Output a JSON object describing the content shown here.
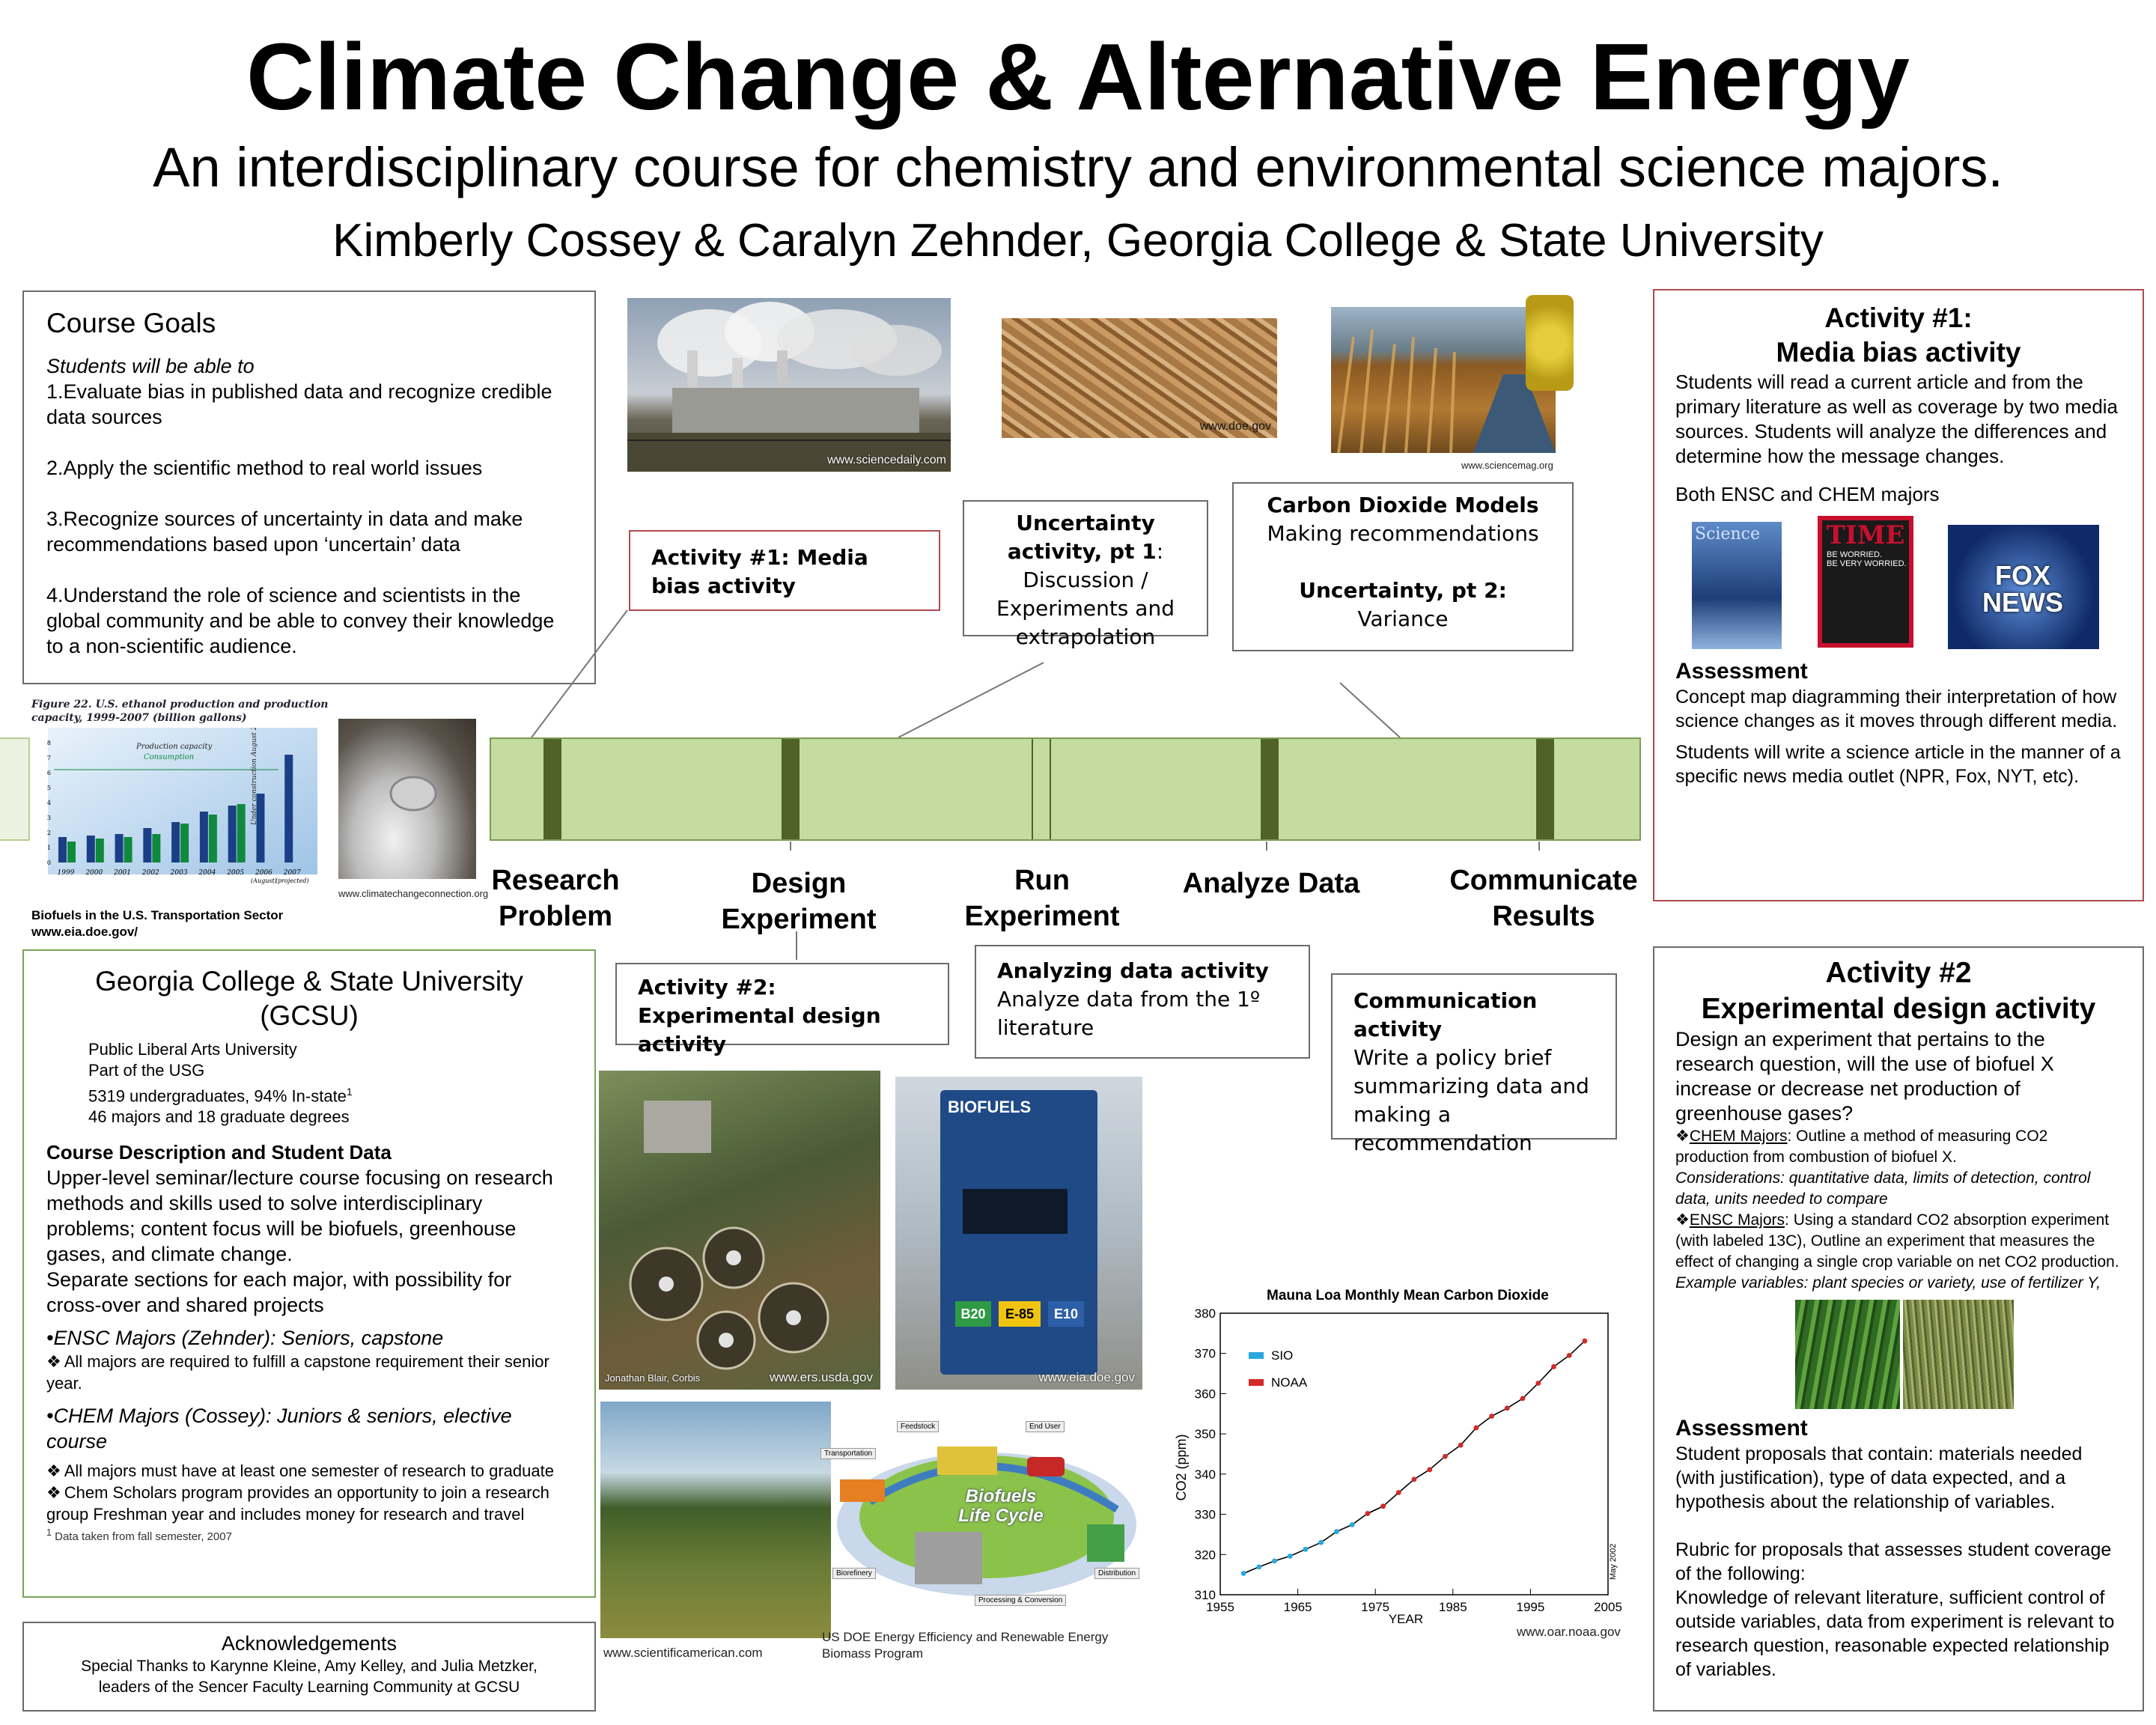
{
  "header": {
    "title": "Climate Change & Alternative Energy",
    "subtitle": "An interdisciplinary course for chemistry and environmental science majors.",
    "authors": "Kimberly Cossey & Caralyn Zehnder, Georgia College & State University"
  },
  "goals": {
    "heading": "Course Goals",
    "intro": "Students will be able to",
    "items": [
      "1.Evaluate bias in published data and recognize credible data sources",
      "2.Apply the scientific method to real world issues",
      "3.Recognize sources of uncertainty in data and make recommendations based upon ‘uncertain’ data",
      "4.Understand the role of science and scientists in the global community and be able to convey their knowledge to a non-scientific audience."
    ]
  },
  "photos": {
    "smokestack_credit": "www.sciencedaily.com",
    "woodchips_credit": "www.doe.gov",
    "corn_credit": "www.sciencemag.org",
    "exhaust_credit": "www.climatechangeconnection.org",
    "aerial_credit1": "Jonathan Blair, Corbis",
    "aerial_credit2": "www.ers.usda.gov",
    "pump_credit": "www.eia.doe.gov",
    "field_credit": "www.scientificamerican.com",
    "lifecycle_credit": "US DOE Energy Efficiency and Renewable Energy Biomass Program",
    "pump_sign": "BIOFUELS",
    "pump_b20": "B20",
    "pump_e85": "E-85",
    "pump_e10": "E10",
    "lifecycle_title": "Biofuels Life Cycle",
    "lifecycle_labels": [
      "Feedstock",
      "End User",
      "Transportation",
      "Biorefinery",
      "Processing & Conversion",
      "Distribution"
    ]
  },
  "ethanol_chart": {
    "caption_title": "Figure 22. U.S. ethanol production and production capacity, 1999-2007 (billion gallons)",
    "legend": [
      "Production capacity",
      "Consumption"
    ],
    "under_construction": "Under construction August 2006",
    "source1": "Biofuels in the U.S. Transportation Sector",
    "source2": "www.eia.doe.gov/"
  },
  "ethanol_chart_data": {
    "type": "bar",
    "categories": [
      "1999",
      "2000",
      "2001",
      "2002",
      "2003",
      "2004",
      "2005",
      "2006",
      "2007"
    ],
    "x_sublabels": [
      "",
      "",
      "",
      "",
      "",
      "",
      "",
      "(August)",
      "(projected)"
    ],
    "series": [
      {
        "name": "Production capacity",
        "values": [
          1.7,
          1.8,
          1.9,
          2.3,
          2.7,
          3.4,
          3.8,
          4.6,
          7.2
        ]
      },
      {
        "name": "Consumption",
        "values": [
          1.4,
          1.6,
          1.7,
          1.9,
          2.6,
          3.2,
          3.9
        ]
      }
    ],
    "ylim": [
      0,
      8
    ],
    "yticks": [
      "0",
      "1",
      "2",
      "3",
      "4",
      "5",
      "6",
      "7",
      "8"
    ]
  },
  "flowchart": {
    "boxes": {
      "media": "Activity #1: Media bias activity",
      "uncertainty_title": "Uncertainty activity, pt 1",
      "uncertainty_rest": ": Discussion / Experiments and extrapolation",
      "co2_title": "Carbon Dioxide Models",
      "co2_sub": "Making recommendations",
      "unc2_title": "Uncertainty, pt 2:",
      "unc2_sub": "Variance",
      "design": "Activity #2: Experimental design activity",
      "analyze_title": "Analyzing data activity",
      "analyze_body": "Analyze data from the 1º literature",
      "comm_title": "Communication activity",
      "comm_body": "Write a policy brief summarizing data and making a recommendation"
    },
    "stages": [
      "Research Problem",
      "Design Experiment",
      "Run Experiment",
      "Analyze Data",
      "Communicate Results"
    ]
  },
  "gcsu": {
    "title": "Georgia College & State University (GCSU)",
    "facts": [
      "Public Liberal Arts University",
      "Part of the USG",
      "5319 undergraduates, 94% In-state",
      "46 majors and 18 graduate degrees"
    ],
    "facts_sup": "1",
    "desc_heading": "Course Description and Student Data",
    "desc": "Upper-level seminar/lecture course focusing on research methods and skills used to solve interdisciplinary problems; content focus will be biofuels, greenhouse gases, and climate change.",
    "desc2": "Separate sections for each major, with possibility for cross-over and shared projects",
    "ensc_heading": "•ENSC Majors (Zehnder): Seniors, capstone",
    "ensc_item": "All majors are required to fulfill a capstone requirement their senior year.",
    "chem_heading": "•CHEM Majors (Cossey): Juniors & seniors, elective course",
    "chem_items": [
      "All majors must have at least one semester of research to graduate",
      "Chem Scholars program provides an opportunity to join a research group Freshman year and includes money for research and  travel"
    ],
    "footnote": "Data taken from fall semester, 2007",
    "footnote_mark": "1"
  },
  "ack": {
    "heading": "Acknowledgements",
    "body": "Special Thanks to Karynne Kleine, Amy Kelley, and Julia Metzker, leaders of the Sencer Faculty Learning Community at GCSU"
  },
  "activity1": {
    "heading1": "Activity #1:",
    "heading2": "Media bias activity",
    "body": "Students will read a current article and from the primary literature as well as coverage by two media sources.  Students will analyze the differences and determine how the message changes.",
    "majors": "Both ENSC and CHEM majors",
    "covers": [
      "Science",
      "TIME",
      "FOX NEWS"
    ],
    "time_line1": "BE WORRIED.",
    "time_line2": "BE VERY WORRIED.",
    "assessment_heading": "Assessment",
    "assessment1": "Concept map diagramming their interpretation of how science changes as it moves through different media.",
    "assessment2": "Students will write a science article in the manner of a specific news media outlet (NPR, Fox, NYT, etc)."
  },
  "activity2": {
    "heading1": "Activity #2",
    "heading2": "Experimental design activity",
    "question": "Design an experiment that pertains to the research question, will the use of biofuel X increase or decrease net production of greenhouse gases?",
    "chem_label": "CHEM Majors",
    "chem_text": ": Outline a method of measuring CO2 production from combustion of biofuel X.",
    "chem_consider": "Considerations: quantitative data, limits of detection, control data, units needed to compare",
    "ensc_label": "ENSC Majors",
    "ensc_text": ": Using a standard CO2 absorption experiment (with labeled 13C), Outline an experiment that measures the effect of changing a single crop variable on net CO2 production.",
    "ensc_example": "Example variables: plant species or variety, use of fertilizer Y,",
    "assessment_heading": "Assessment",
    "assessment": "Student proposals that contain: materials needed (with justification), type of data expected, and a hypothesis about the relationship of variables.",
    "rubric": "Rubric for proposals that assesses student coverage of the following:",
    "rubric_body": "Knowledge of relevant literature, sufficient control of outside variables, data from experiment is relevant to research question, reasonable expected relationship of variables."
  },
  "colors": {
    "timeline_fill": "#c5dca0",
    "timeline_marker": "#4f6228",
    "sio": "#29a8e0",
    "noaa": "#d42a2a"
  },
  "chart_data": {
    "type": "line",
    "title": "Mauna Loa Monthly Mean Carbon Dioxide",
    "xlabel": "YEAR",
    "ylabel": "CO2 (ppm)",
    "xlim": [
      1955,
      2005
    ],
    "ylim": [
      310,
      380
    ],
    "xticks": [
      "1955",
      "1965",
      "1975",
      "1985",
      "1995",
      "2005"
    ],
    "yticks": [
      "310",
      "320",
      "330",
      "340",
      "350",
      "360",
      "370",
      "380"
    ],
    "legend": "top-left",
    "series": [
      {
        "name": "SIO",
        "x": [
          1958,
          1960,
          1962,
          1964,
          1966,
          1968,
          1970,
          1972,
          1974,
          1976
        ],
        "values": [
          315.3,
          316.9,
          318.4,
          319.6,
          321.3,
          323.0,
          325.7,
          327.4,
          330.2,
          332.0
        ]
      },
      {
        "name": "NOAA",
        "x": [
          1974,
          1976,
          1978,
          1980,
          1982,
          1984,
          1986,
          1988,
          1990,
          1992,
          1994,
          1996,
          1998,
          2000,
          2002
        ],
        "values": [
          330.2,
          332.0,
          335.4,
          338.7,
          341.1,
          344.4,
          347.2,
          351.5,
          354.4,
          356.4,
          358.8,
          362.6,
          366.7,
          369.5,
          373.1
        ]
      }
    ],
    "annotation": "May 2002",
    "credit": "www.oar.noaa.gov"
  }
}
